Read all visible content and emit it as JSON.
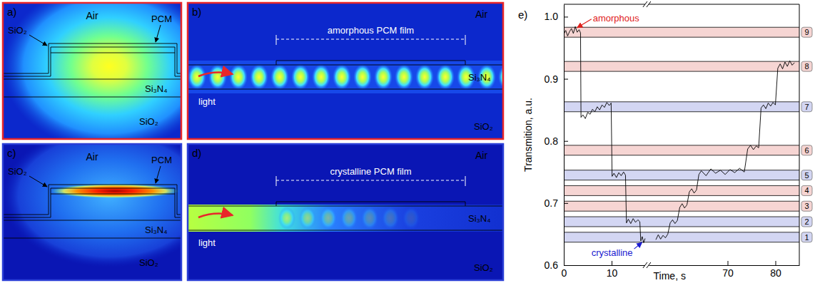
{
  "figure": {
    "panels": [
      {
        "letter": "a)",
        "kind": "cross-section",
        "state": "amorphous",
        "color": "#e8262a",
        "texts": {
          "air": "Air",
          "pcm": "PCM",
          "cap": "SiO₂",
          "core": "Si₃N₄",
          "substrate": "SiO₂"
        }
      },
      {
        "letter": "b)",
        "kind": "side-view",
        "state": "amorphous",
        "color": "#e8262a",
        "texts": {
          "film": "amorphous PCM film",
          "air": "Air",
          "core": "Si₃N₄",
          "light": "light",
          "substrate": "SiO₂"
        }
      },
      {
        "letter": "c)",
        "kind": "cross-section",
        "state": "crystalline",
        "color": "#2b3fd6",
        "texts": {
          "air": "Air",
          "pcm": "PCM",
          "cap": "SiO₂",
          "core": "Si₃N₄",
          "substrate": "SiO₂"
        }
      },
      {
        "letter": "d)",
        "kind": "side-view",
        "state": "crystalline",
        "color": "#2b3fd6",
        "texts": {
          "film": "crystalline PCM film",
          "air": "Air",
          "core": "Si₃N₄",
          "light": "light",
          "substrate": "SiO₂"
        }
      }
    ]
  },
  "chart_data": {
    "type": "line",
    "panel_label": "e)",
    "xlabel": "Time, s",
    "ylabel": "Transmition, a.u.",
    "xlim": [
      [
        0,
        17
      ],
      [
        53.5,
        85
      ]
    ],
    "xticks": [
      0,
      10,
      70,
      80
    ],
    "ylim": [
      0.6,
      1.02
    ],
    "yticks": [
      0.6,
      0.7,
      0.8,
      0.9,
      {
        "value": 1,
        "label": "1.0"
      }
    ],
    "color": "#000000",
    "x": [
      0,
      0.4,
      0.8,
      1.2,
      1.6,
      2,
      2.4,
      2.8,
      3.2,
      3.5,
      3.6,
      4,
      4.5,
      5,
      5.5,
      6,
      6.5,
      7,
      7.5,
      8,
      8.5,
      9,
      9.5,
      9.9,
      10.1,
      10.5,
      11,
      11.5,
      12,
      12.5,
      12.9,
      13.1,
      13.5,
      14,
      14.5,
      15,
      15.5,
      15.9,
      16.1,
      16.4,
      16.7,
      17,
      55,
      55.5,
      56,
      56.5,
      57,
      57.5,
      58,
      58.5,
      59,
      59.5,
      60,
      60.5,
      61,
      61.5,
      62,
      62.5,
      63,
      63.5,
      64,
      64.5,
      65.5,
      66.5,
      67.5,
      68.5,
      69.5,
      70.5,
      71.5,
      72.5,
      73.5,
      74.2,
      74.8,
      75.4,
      76,
      76.5,
      77,
      77.5,
      78,
      78.5,
      79,
      79.5,
      80,
      80.5,
      81,
      81.5,
      82,
      82.5,
      83,
      83.5,
      84
    ],
    "values": [
      0.972,
      0.978,
      0.969,
      0.976,
      0.981,
      0.973,
      0.984,
      0.975,
      0.979,
      0.974,
      0.838,
      0.842,
      0.836,
      0.846,
      0.843,
      0.851,
      0.847,
      0.855,
      0.85,
      0.858,
      0.854,
      0.862,
      0.857,
      0.861,
      0.743,
      0.748,
      0.741,
      0.749,
      0.744,
      0.75,
      0.745,
      0.668,
      0.674,
      0.667,
      0.675,
      0.669,
      0.673,
      0.67,
      0.639,
      0.646,
      0.636,
      0.643,
      0.641,
      0.649,
      0.642,
      0.648,
      0.644,
      0.65,
      0.668,
      0.673,
      0.667,
      0.672,
      0.693,
      0.699,
      0.692,
      0.697,
      0.718,
      0.723,
      0.716,
      0.721,
      0.746,
      0.752,
      0.744,
      0.755,
      0.748,
      0.753,
      0.746,
      0.754,
      0.749,
      0.756,
      0.75,
      0.787,
      0.793,
      0.786,
      0.792,
      0.789,
      0.853,
      0.858,
      0.852,
      0.861,
      0.856,
      0.862,
      0.858,
      0.917,
      0.924,
      0.916,
      0.927,
      0.92,
      0.929,
      0.922,
      0.926
    ],
    "levels": [
      {
        "label": "1",
        "low": 0.637,
        "high": 0.653,
        "color": "#d3d6f3"
      },
      {
        "label": "2",
        "low": 0.662,
        "high": 0.678,
        "color": "#d3d6f3"
      },
      {
        "label": "3",
        "low": 0.687,
        "high": 0.703,
        "color": "#f6d5d3"
      },
      {
        "label": "4",
        "low": 0.712,
        "high": 0.728,
        "color": "#f6d5d3"
      },
      {
        "label": "5",
        "low": 0.737,
        "high": 0.753,
        "color": "#d3d6f3"
      },
      {
        "label": "6",
        "low": 0.777,
        "high": 0.793,
        "color": "#f6d5d3"
      },
      {
        "label": "7",
        "low": 0.847,
        "high": 0.863,
        "color": "#d3d6f3"
      },
      {
        "label": "8",
        "low": 0.912,
        "high": 0.928,
        "color": "#f6d5d3"
      },
      {
        "label": "9",
        "low": 0.967,
        "high": 0.983,
        "color": "#f6d5d3"
      }
    ],
    "annotations": [
      {
        "text": "amorphous",
        "color": "#e0201b",
        "x": 2.5,
        "y": 0.98
      },
      {
        "text": "crystalline",
        "color": "#1a1ad0",
        "x": 16.5,
        "y": 0.64
      }
    ]
  }
}
